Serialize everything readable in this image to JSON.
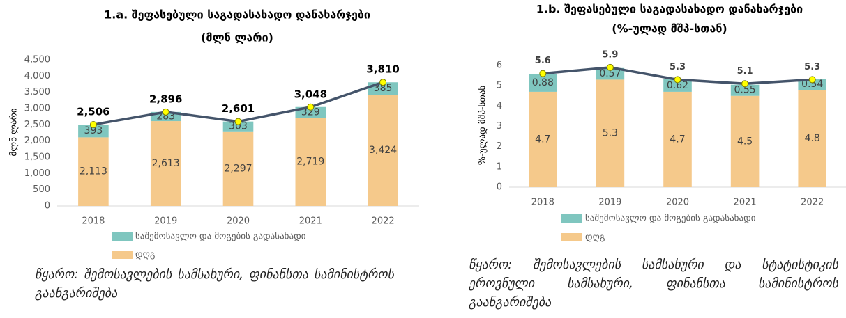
{
  "chart_data": [
    {
      "type": "stacked_bar",
      "title": "1.a. შეფასებული საგადასახადო დანახარჯები",
      "subtitle": "(მლნ ლარი)",
      "y_label": "მლნ ლარი",
      "categories": [
        "2018",
        "2019",
        "2020",
        "2021",
        "2022"
      ],
      "series": [
        {
          "name": "საშემოსავლო და მოგების გადასახადი",
          "color": "#7fc6bf",
          "values": [
            393,
            283,
            303,
            329,
            385
          ]
        },
        {
          "name": "დღგ",
          "color": "#f5c98b",
          "values": [
            2113,
            2613,
            2297,
            2719,
            3424
          ],
          "value_labels": [
            "2,113",
            "2,613",
            "2,297",
            "2,719",
            "3,424"
          ]
        }
      ],
      "totals": {
        "color": "#44546a",
        "values": [
          2506,
          2896,
          2601,
          3048,
          3810
        ],
        "value_labels": [
          "2,506",
          "2,896",
          "2,601",
          "3,048",
          "3,810"
        ]
      },
      "ylim": [
        0,
        4500
      ],
      "yticks": [
        0,
        500,
        {
          "value": 1000,
          "label": "1,000"
        },
        {
          "value": 1500,
          "label": "1,500"
        },
        {
          "value": 2000,
          "label": "2,000"
        },
        {
          "value": 2500,
          "label": "2,500"
        },
        {
          "value": 3000,
          "label": "3,000"
        },
        {
          "value": 3500,
          "label": "3,500"
        },
        {
          "value": 4000,
          "label": "4,000"
        },
        {
          "value": 4500,
          "label": "4,500"
        }
      ],
      "source": "წყარო: შემოსავლების სამსახური, ფინანსთა სამინისტროს გაანგარიშება"
    },
    {
      "type": "stacked_bar",
      "title": "1.b. შეფასებული საგადასახადო დანახარჯები",
      "subtitle": "(%-ულად მშპ-სთან)",
      "y_label": "%-ულად მშპ-სთან",
      "categories": [
        "2018",
        "2019",
        "2020",
        "2021",
        "2022"
      ],
      "series": [
        {
          "name": "საშემოსავლო და მოგების გადასახადი",
          "color": "#7fc6bf",
          "values": [
            0.88,
            0.57,
            0.62,
            0.55,
            0.54
          ]
        },
        {
          "name": "დღგ",
          "color": "#f5c98b",
          "values": [
            4.7,
            5.3,
            4.7,
            4.5,
            4.8
          ]
        }
      ],
      "totals": {
        "color": "#44546a",
        "values": [
          5.6,
          5.9,
          5.3,
          5.1,
          5.3
        ]
      },
      "ylim": [
        0,
        6
      ],
      "yticks": [
        0,
        1,
        2,
        3,
        4,
        5,
        6
      ],
      "source": "წყარო: შემოსავლების სამსახური და სტატისტიკის ეროვნული სამსახური, ფინანსთა სამინისტროს გაანგარიშება"
    }
  ]
}
